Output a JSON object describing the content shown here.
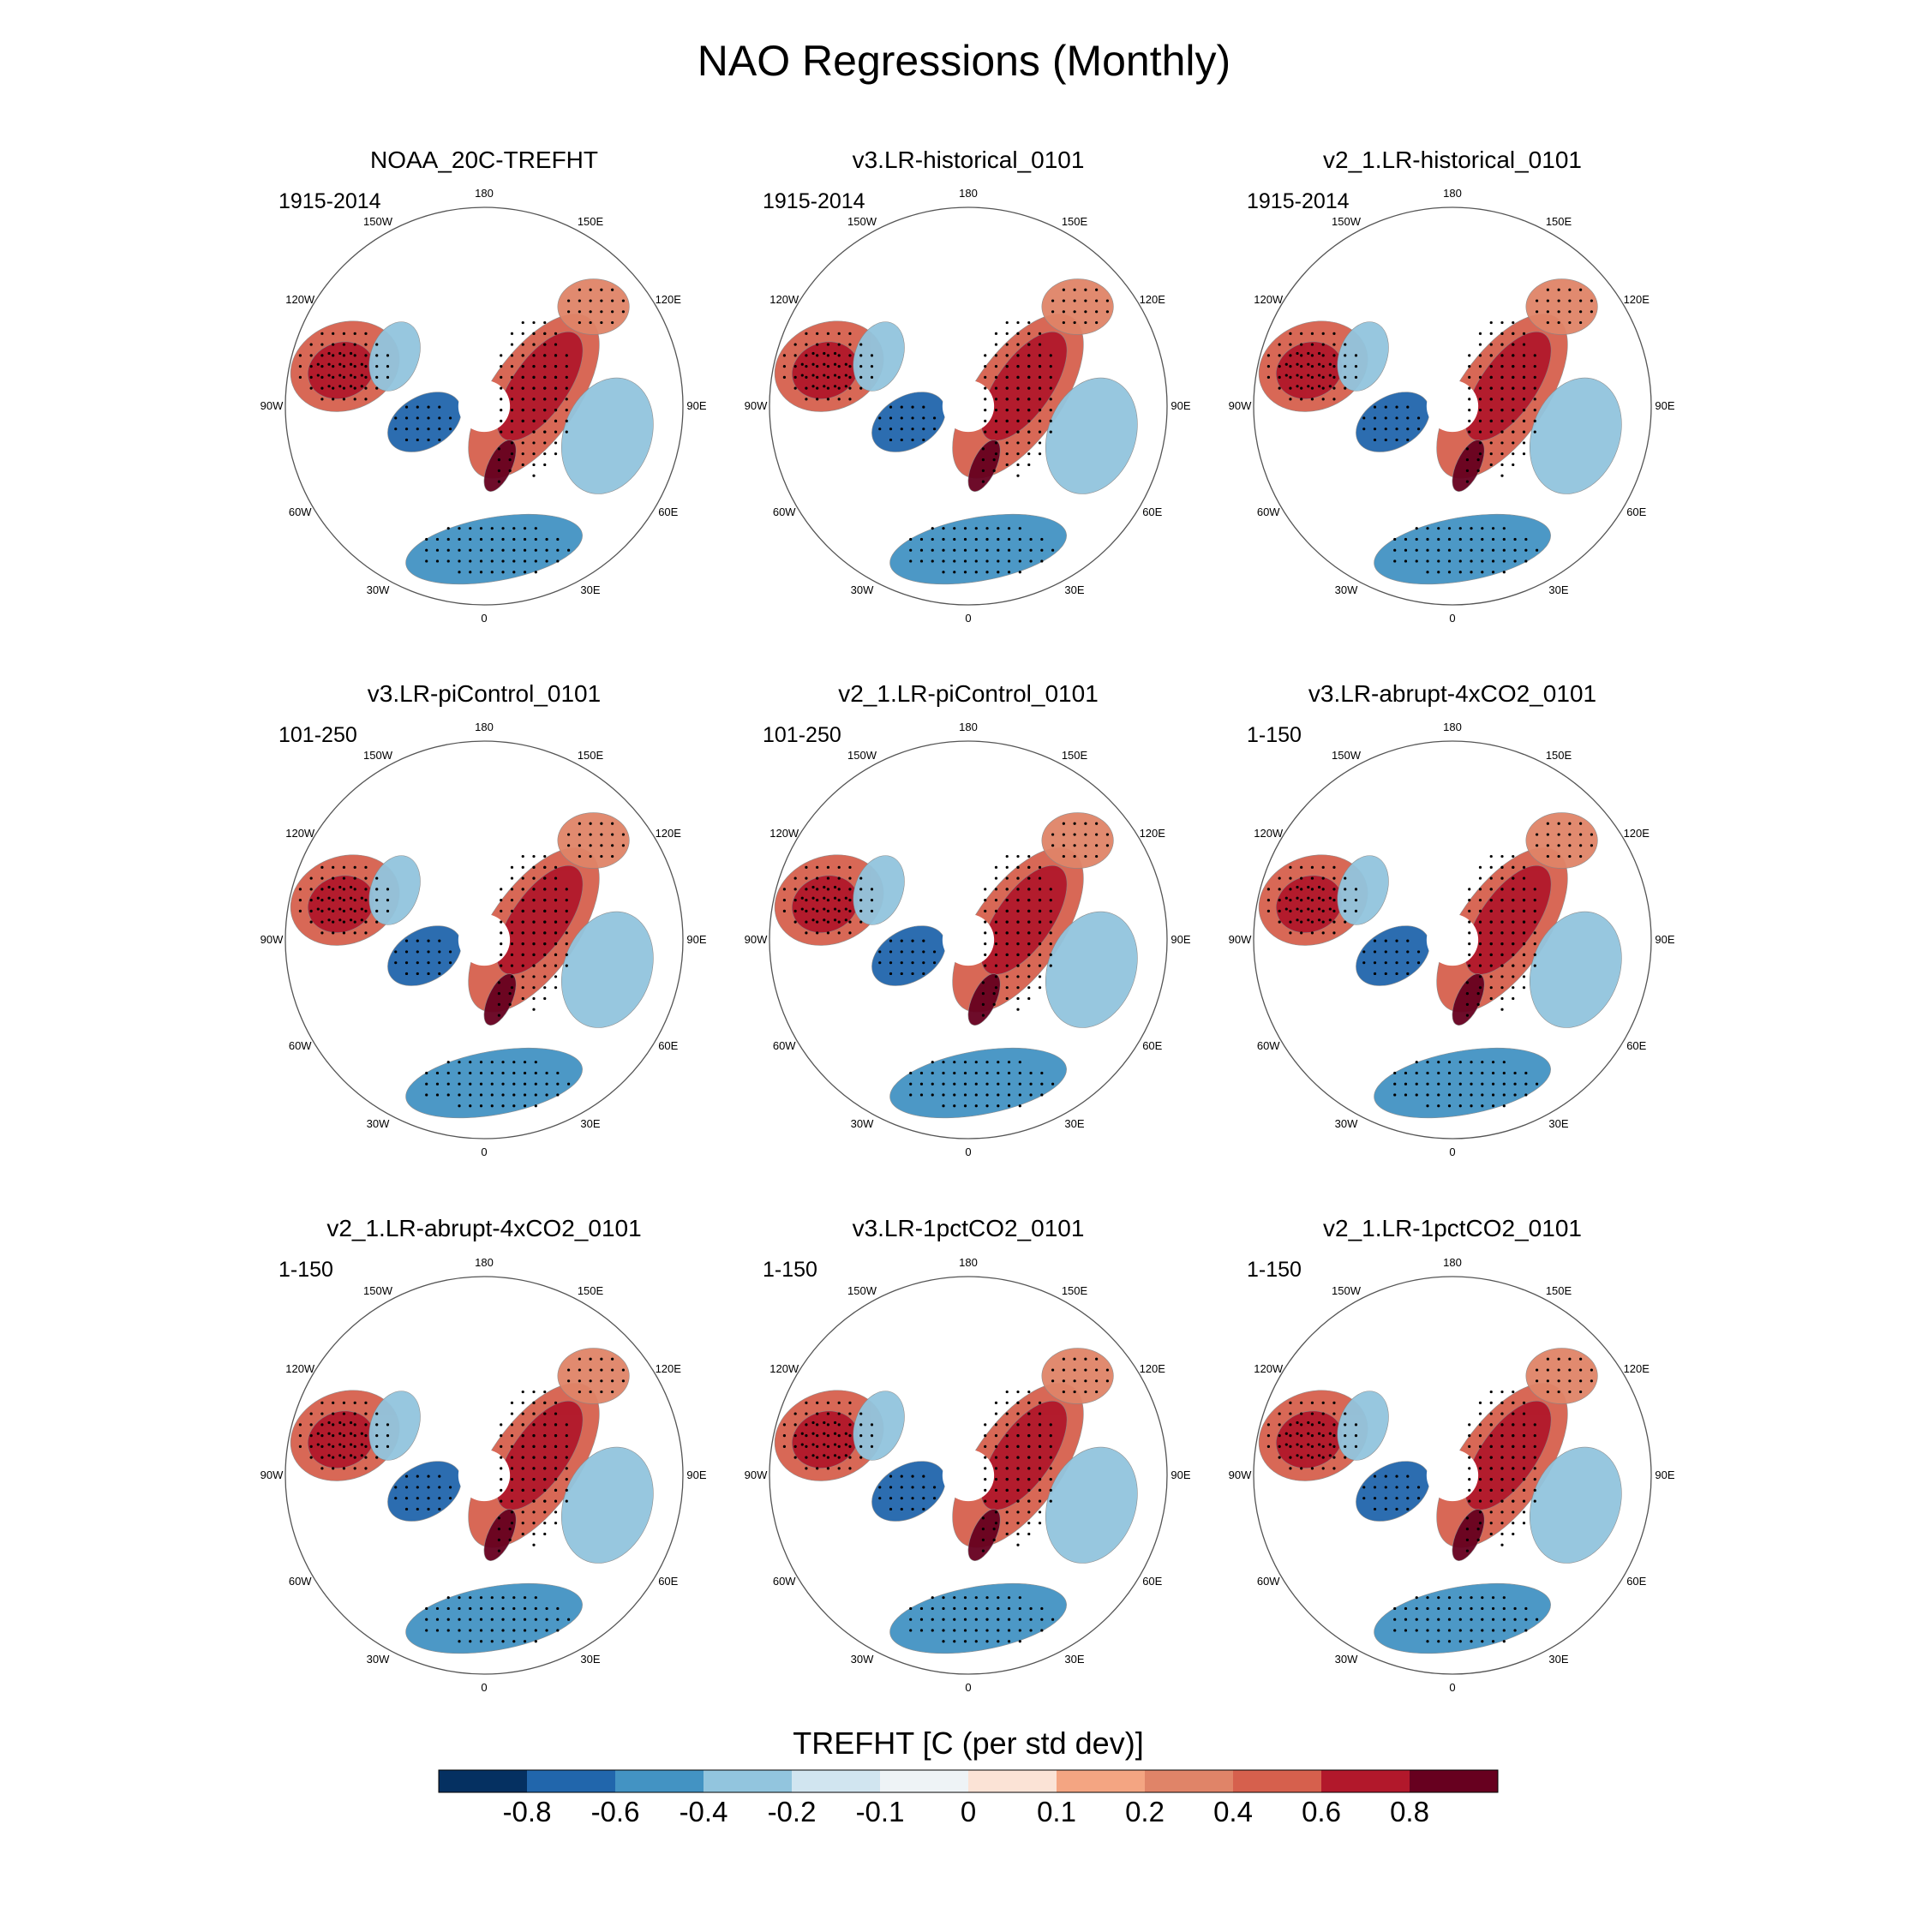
{
  "chart_data": {
    "type": "heatmap",
    "title": "NAO Regressions (Monthly)",
    "projection": "north-polar-stereographic",
    "longitude_labels": [
      "180",
      "150E",
      "120E",
      "90E",
      "60E",
      "30E",
      "0",
      "30W",
      "60W",
      "90W",
      "120W",
      "150W"
    ],
    "stippling": "significant regions marked with dots",
    "panels": [
      {
        "title": "NOAA_20C-TREFHT",
        "period": "1915-2014"
      },
      {
        "title": "v3.LR-historical_0101",
        "period": "1915-2014"
      },
      {
        "title": "v2_1.LR-historical_0101",
        "period": "1915-2014"
      },
      {
        "title": "v3.LR-piControl_0101",
        "period": "101-250"
      },
      {
        "title": "v2_1.LR-piControl_0101",
        "period": "101-250"
      },
      {
        "title": "v3.LR-abrupt-4xCO2_0101",
        "period": "1-150"
      },
      {
        "title": "v2_1.LR-abrupt-4xCO2_0101",
        "period": "1-150"
      },
      {
        "title": "v3.LR-1pctCO2_0101",
        "period": "1-150"
      },
      {
        "title": "v2_1.LR-1pctCO2_0101",
        "period": "1-150"
      }
    ],
    "colorbar": {
      "label": "TREFHT [C (per std dev)]",
      "levels": [
        "-0.8",
        "-0.6",
        "-0.4",
        "-0.2",
        "-0.1",
        "0",
        "0.1",
        "0.2",
        "0.4",
        "0.6",
        "0.8"
      ],
      "colors": [
        "#053061",
        "#2166ac",
        "#4393c3",
        "#92c5de",
        "#d1e5f0",
        "#eef3f6",
        "#fbe3d6",
        "#f4a582",
        "#e08468",
        "#d6604d",
        "#b2182b",
        "#67001f"
      ]
    }
  }
}
